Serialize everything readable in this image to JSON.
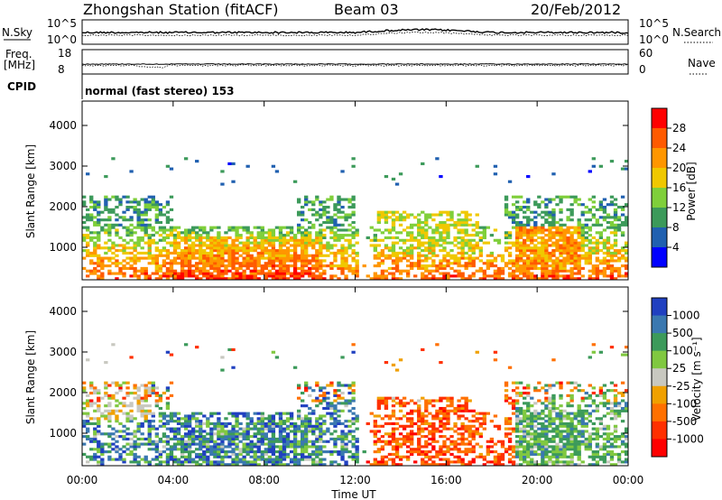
{
  "header": {
    "station": "Zhongshan Station (fitACF)",
    "beam": "Beam 03",
    "date": "20/Feb/2012"
  },
  "top_panels": {
    "nsky_label": "N.Sky",
    "nsearch_label": "N.Search",
    "nsky_ticks": [
      "10^5",
      "10^0"
    ],
    "nsearch_ticks": [
      "10^5",
      "10^0"
    ],
    "freq_label": "Freq.",
    "freq_unit": "[MHz]",
    "freq_ticks": [
      "18",
      "8"
    ],
    "nave_label": "Nave",
    "nave_ticks": [
      "60",
      "0"
    ],
    "cpid_label": "CPID",
    "cpid_text": "normal (fast stereo) 153"
  },
  "chart_data": [
    {
      "type": "heatmap",
      "name": "power-panel",
      "ylabel": "Slant Range [km]",
      "yticks": [
        "4000",
        "3000",
        "2000",
        "1000"
      ],
      "ylim": [
        200,
        4600
      ],
      "xlim": [
        0,
        24
      ],
      "colorbar": {
        "label": "Power [dB]",
        "ticks": [
          "28",
          "24",
          "20",
          "16",
          "12",
          "8",
          "4"
        ],
        "colors": [
          "#ff0000",
          "#ff5a00",
          "#ff9600",
          "#f0c800",
          "#7fcf3a",
          "#3c9a5a",
          "#2060b0",
          "#0000ff"
        ]
      }
    },
    {
      "type": "heatmap",
      "name": "velocity-panel",
      "ylabel": "Slant Range [km]",
      "yticks": [
        "4000",
        "3000",
        "2000",
        "1000"
      ],
      "ylim": [
        200,
        4600
      ],
      "xlim": [
        0,
        24
      ],
      "xlabel": "Time UT",
      "xticks": [
        "00:00",
        "04:00",
        "08:00",
        "12:00",
        "16:00",
        "20:00",
        "00:00"
      ],
      "colorbar": {
        "label": "Velocity [m s⁻¹]",
        "ticks": [
          "1000",
          "500",
          "100",
          "25",
          "-25",
          "-100",
          "-500",
          "-1000"
        ],
        "colors": [
          "#2040c0",
          "#3a78b0",
          "#3c9a5a",
          "#80c840",
          "#c8c8c0",
          "#f0a000",
          "#ff7000",
          "#ff3000",
          "#ff0000"
        ]
      }
    }
  ]
}
